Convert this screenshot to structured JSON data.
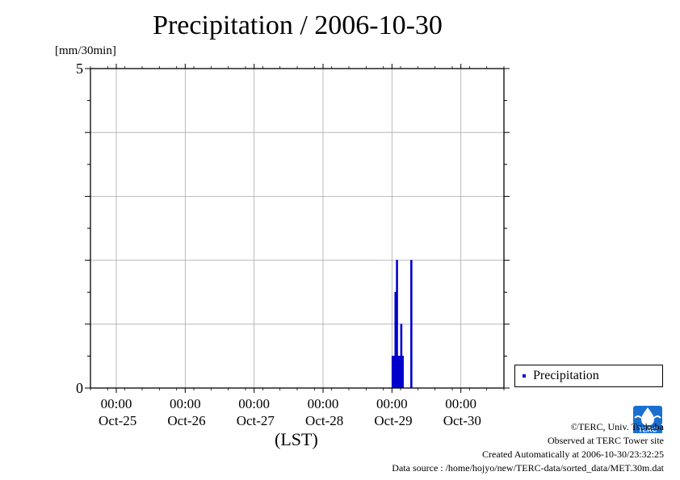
{
  "chart_data": {
    "type": "bar",
    "title": "Precipitation / 2006-10-30",
    "ylabel": "[mm/30min]",
    "xlabel": "(LST)",
    "ylim": [
      0,
      5
    ],
    "ytick_labels": [
      "0",
      "5"
    ],
    "xlim": [
      "2006-10-24T15:00",
      "2006-10-30T15:00"
    ],
    "xtick_time_label": "00:00",
    "xtick_labels": [
      "Oct-25",
      "Oct-26",
      "Oct-27",
      "Oct-28",
      "Oct-29",
      "Oct-30"
    ],
    "xtick_times": [
      "2006-10-25T00:00",
      "2006-10-26T00:00",
      "2006-10-27T00:00",
      "2006-10-28T00:00",
      "2006-10-29T00:00",
      "2006-10-30T00:00"
    ],
    "grid": true,
    "legend_position": "right",
    "series": [
      {
        "name": "Precipitation",
        "color": "#0000cc",
        "x": [
          "2006-10-29T00:30",
          "2006-10-29T01:00",
          "2006-10-29T01:30",
          "2006-10-29T02:00",
          "2006-10-29T02:30",
          "2006-10-29T03:00",
          "2006-10-29T03:30",
          "2006-10-29T04:00",
          "2006-10-29T04:30",
          "2006-10-29T05:00",
          "2006-10-29T05:30",
          "2006-10-29T06:00",
          "2006-10-29T06:30",
          "2006-10-29T07:00"
        ],
        "values": [
          0.5,
          0.5,
          1.5,
          2.0,
          0.5,
          0.5,
          1.0,
          0.5,
          0.0,
          0.0,
          0.0,
          0.0,
          0.0,
          2.0
        ]
      }
    ]
  },
  "credits": {
    "copyright": "©TERC, Univ. Tsukuba",
    "site": "Observed at TERC Tower site",
    "created": "Created Automatically at 2006-10-30/23:32:25",
    "source": "Data source : /home/hojyo/new/TERC-data/sorted_data/MET.30m.dat"
  },
  "logo": {
    "name": "TERC logo",
    "color": "#1a6fd0"
  }
}
